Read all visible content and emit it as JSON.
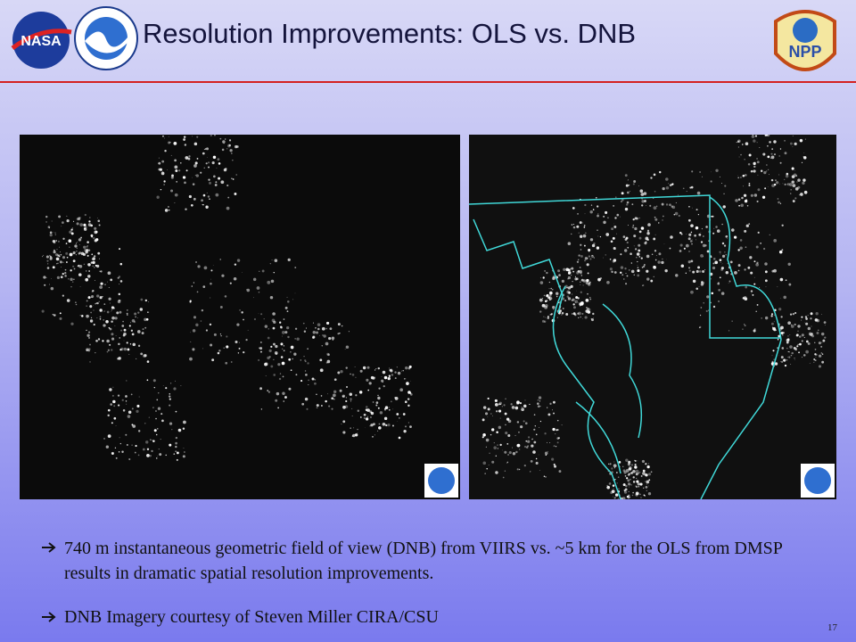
{
  "header": {
    "title": "Resolution Improvements: OLS vs. DNB",
    "logos": [
      "NASA",
      "NPP"
    ]
  },
  "bullets": [
    "740 m instantaneous geometric field of view (DNB) from VIIRS vs.  ~5 km for the OLS from DMSP results in dramatic spatial resolution improvements.",
    "DNB Imagery courtesy of Steven Miller CIRA/CSU"
  ],
  "page_number": "17"
}
